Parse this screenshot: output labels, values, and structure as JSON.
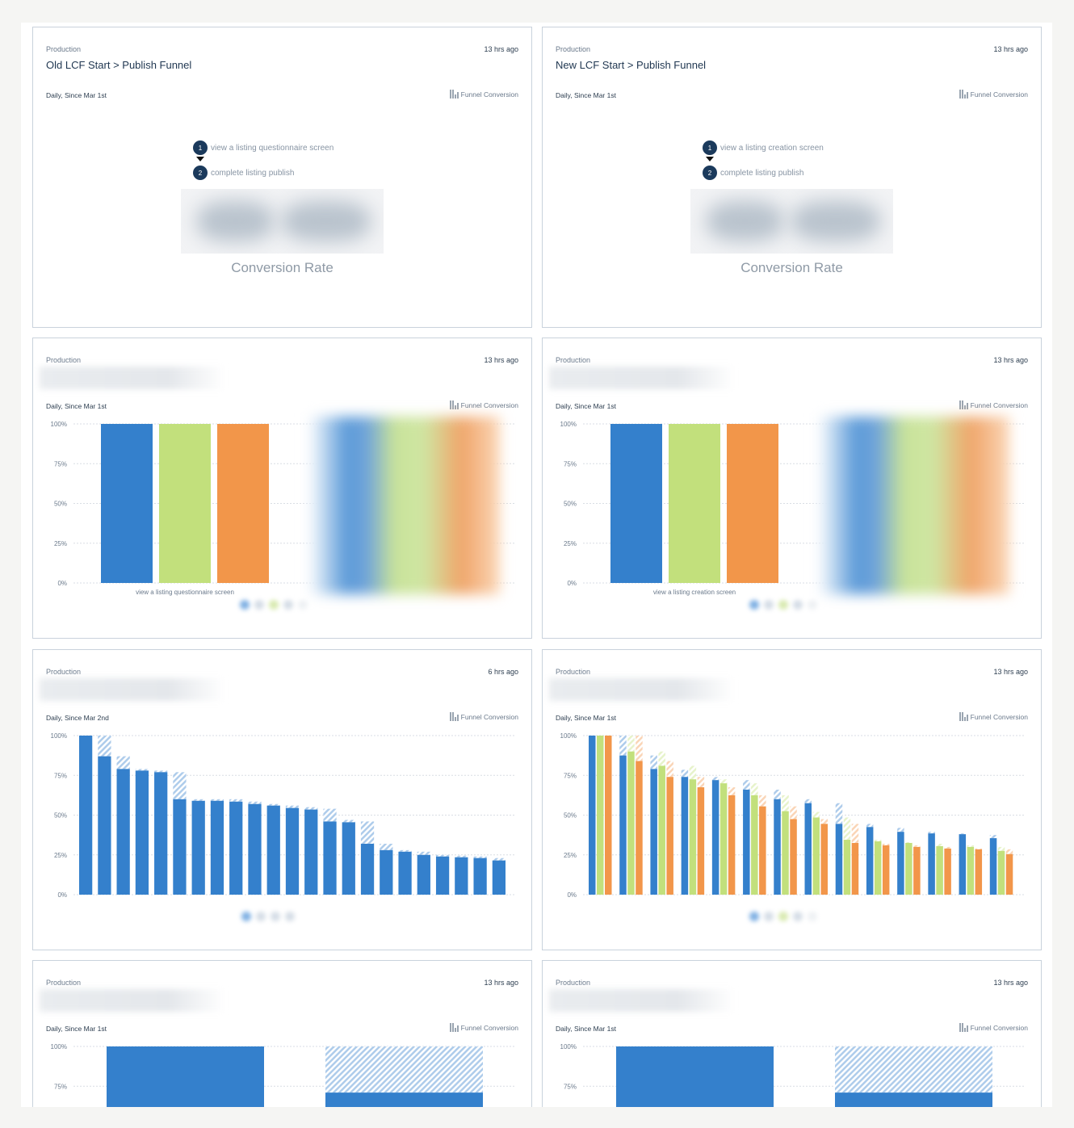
{
  "colors": {
    "blue": "#3480cc",
    "green": "#c2e07c",
    "orange": "#f2964a",
    "grid": "#d9dee4",
    "axis": "#6b7a8c"
  },
  "cards": [
    {
      "env": "Production",
      "time": "13 hrs ago",
      "title": "Old LCF Start > Publish Funnel",
      "subtitle": "Daily, Since Mar 1st",
      "chart_type": "Funnel Conversion",
      "steps": [
        {
          "n": "1",
          "label": "view a listing questionnaire screen"
        },
        {
          "n": "2",
          "label": "complete listing publish"
        }
      ],
      "metric_label": "Conversion Rate"
    },
    {
      "env": "Production",
      "time": "13 hrs ago",
      "title": "New LCF Start > Publish Funnel",
      "subtitle": "Daily, Since Mar 1st",
      "chart_type": "Funnel Conversion",
      "steps": [
        {
          "n": "1",
          "label": "view a listing creation screen"
        },
        {
          "n": "2",
          "label": "complete listing publish"
        }
      ],
      "metric_label": "Conversion Rate"
    },
    {
      "env": "Production",
      "time": "13 hrs ago",
      "subtitle": "Daily, Since Mar 1st",
      "chart_type": "Funnel Conversion"
    },
    {
      "env": "Production",
      "time": "13 hrs ago",
      "subtitle": "Daily, Since Mar 1st",
      "chart_type": "Funnel Conversion"
    },
    {
      "env": "Production",
      "time": "6 hrs ago",
      "subtitle": "Daily, Since Mar 2nd",
      "chart_type": "Funnel Conversion"
    },
    {
      "env": "Production",
      "time": "13 hrs ago",
      "subtitle": "Daily, Since Mar 1st",
      "chart_type": "Funnel Conversion"
    },
    {
      "env": "Production",
      "time": "13 hrs ago",
      "subtitle": "Daily, Since Mar 1st",
      "chart_type": "Funnel Conversion"
    },
    {
      "env": "Production",
      "time": "13 hrs ago",
      "subtitle": "Daily, Since Mar 1st",
      "chart_type": "Funnel Conversion"
    }
  ],
  "chart_data": [
    {
      "card": 3,
      "type": "bar",
      "yticks": [
        "0%",
        "25%",
        "50%",
        "75%",
        "100%"
      ],
      "ylim": [
        0,
        100
      ],
      "categories": [
        "view a listing questionnaire screen"
      ],
      "series": [
        {
          "color": "blue",
          "values": [
            100
          ]
        },
        {
          "color": "green",
          "values": [
            100
          ]
        },
        {
          "color": "orange",
          "values": [
            100
          ]
        }
      ]
    },
    {
      "card": 4,
      "type": "bar",
      "yticks": [
        "0%",
        "25%",
        "50%",
        "75%",
        "100%"
      ],
      "ylim": [
        0,
        100
      ],
      "categories": [
        "view a listing creation screen"
      ],
      "series": [
        {
          "color": "blue",
          "values": [
            100
          ]
        },
        {
          "color": "green",
          "values": [
            100
          ]
        },
        {
          "color": "orange",
          "values": [
            100
          ]
        }
      ]
    },
    {
      "card": 5,
      "type": "bar",
      "yticks": [
        "0%",
        "25%",
        "50%",
        "75%",
        "100%"
      ],
      "ylim": [
        0,
        100
      ],
      "series": [
        {
          "color": "blue",
          "converted": [
            100,
            87,
            79,
            78,
            77,
            60,
            59,
            59,
            58.5,
            57,
            56,
            54.5,
            53.5,
            46,
            45.5,
            32,
            28,
            27,
            25,
            24,
            23.5,
            23,
            21.5
          ],
          "total": [
            100,
            100,
            87,
            79,
            78,
            77,
            60,
            60,
            60,
            58.5,
            57,
            56,
            55,
            54,
            47,
            46,
            32,
            28,
            27,
            25,
            24.5,
            24,
            23
          ]
        }
      ]
    },
    {
      "card": 6,
      "type": "bar",
      "yticks": [
        "0%",
        "25%",
        "50%",
        "75%",
        "100%"
      ],
      "ylim": [
        0,
        100
      ],
      "series": [
        {
          "color": "blue",
          "converted": [
            100,
            87.5,
            79,
            74,
            72,
            66,
            60,
            57.5,
            44.5,
            42.5,
            39.5,
            38.5,
            38,
            35.5
          ],
          "total": [
            100,
            100,
            87.5,
            78.5,
            74,
            72,
            66,
            60,
            57.5,
            44.5,
            42,
            39.5,
            38.5,
            37.5
          ]
        },
        {
          "color": "green",
          "converted": [
            100,
            90,
            81,
            72.5,
            70,
            62.5,
            52.5,
            48.5,
            34.5,
            33.5,
            32.5,
            30.5,
            30,
            27.5
          ],
          "total": [
            100,
            100,
            90,
            81,
            72.5,
            70,
            62.5,
            52,
            48.5,
            34.5,
            33,
            32,
            31,
            30
          ]
        },
        {
          "color": "orange",
          "converted": [
            100,
            84,
            74,
            67.5,
            62.5,
            55.5,
            47.5,
            44.5,
            32.5,
            31,
            30,
            29,
            28.5,
            25.5
          ],
          "total": [
            100,
            100,
            84,
            74,
            67.5,
            62.5,
            55.5,
            47.5,
            44.5,
            32,
            31,
            30,
            29,
            28.5
          ]
        }
      ]
    },
    {
      "card": 7,
      "type": "bar",
      "yticks": [
        "75%",
        "100%"
      ],
      "ylim": [
        0,
        100
      ],
      "series": [
        {
          "color": "blue",
          "converted": [
            100,
            71
          ],
          "total": [
            100,
            100
          ]
        }
      ]
    },
    {
      "card": 8,
      "type": "bar",
      "yticks": [
        "75%",
        "100%"
      ],
      "ylim": [
        0,
        100
      ],
      "series": [
        {
          "color": "blue",
          "converted": [
            100,
            71
          ],
          "total": [
            100,
            100
          ]
        }
      ]
    }
  ]
}
